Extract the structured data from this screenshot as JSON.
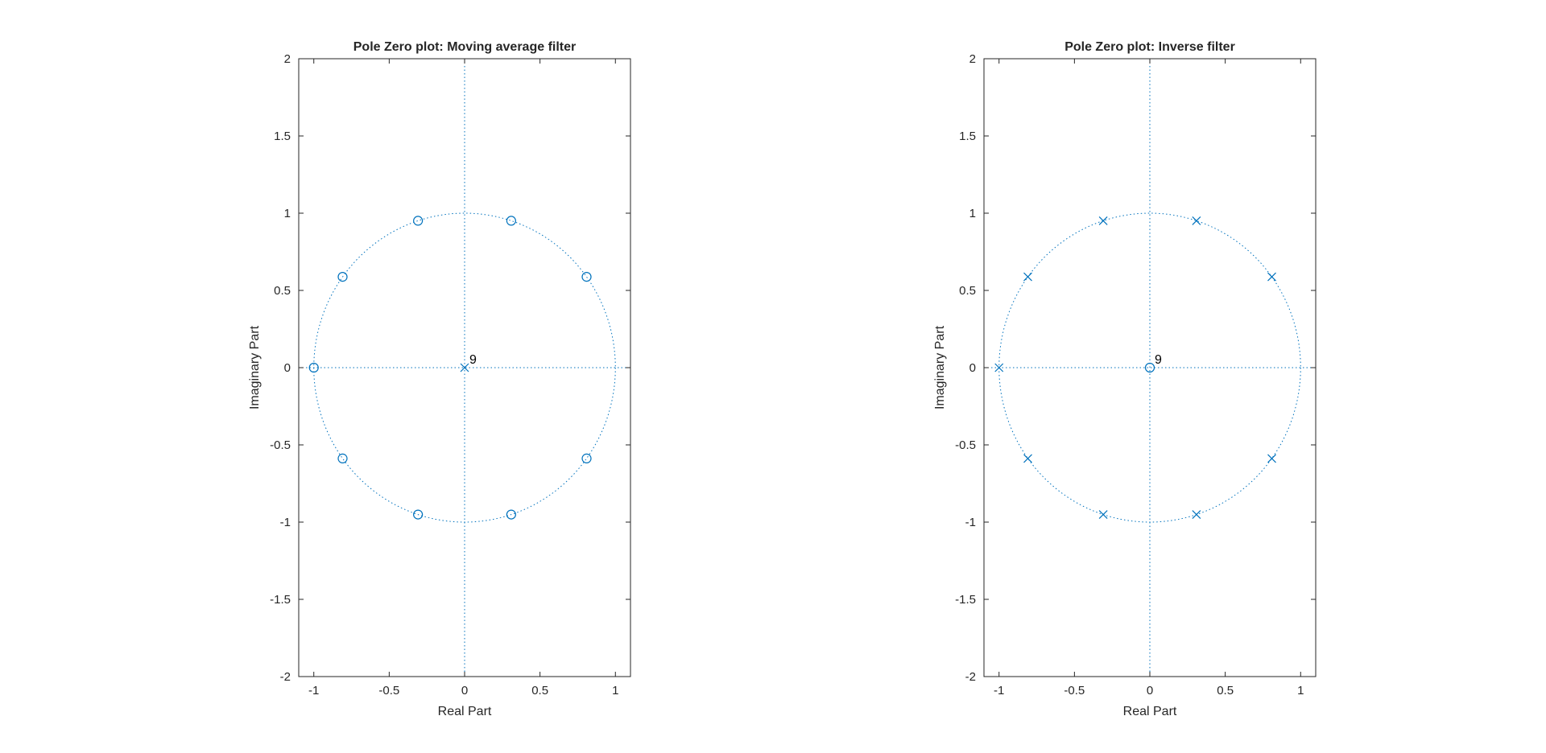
{
  "colors": {
    "marker": "#0072BD",
    "axes": "#262626",
    "background": "#FFFFFF"
  },
  "chart_data": [
    {
      "type": "scatter",
      "title": "Pole Zero plot: Moving average filter",
      "xlabel": "Real Part",
      "ylabel": "Imaginary Part",
      "xlim": [
        -1.1,
        1.1
      ],
      "ylim": [
        -2,
        2
      ],
      "xticks": [
        -1,
        -0.5,
        0,
        0.5,
        1
      ],
      "xtick_labels": [
        "-1",
        "-0.5",
        "0",
        "0.5",
        "1"
      ],
      "yticks": [
        -2,
        -1.5,
        -1,
        -0.5,
        0,
        0.5,
        1,
        1.5,
        2
      ],
      "ytick_labels": [
        "-2",
        "-1.5",
        "-1",
        "-0.5",
        "0",
        "0.5",
        "1",
        "1.5",
        "2"
      ],
      "unit_circle": true,
      "zeros": [
        [
          0.309,
          0.951
        ],
        [
          -0.309,
          0.951
        ],
        [
          0.809,
          0.588
        ],
        [
          -0.809,
          0.588
        ],
        [
          -1,
          0
        ],
        [
          0.809,
          -0.588
        ],
        [
          -0.809,
          -0.588
        ],
        [
          0.309,
          -0.951
        ],
        [
          -0.309,
          -0.951
        ]
      ],
      "poles": [
        [
          0,
          0
        ]
      ],
      "multiplicity": [
        {
          "x": 0,
          "y": 0,
          "label": "9"
        }
      ]
    },
    {
      "type": "scatter",
      "title": "Pole Zero plot: Inverse filter",
      "xlabel": "Real Part",
      "ylabel": "Imaginary Part",
      "xlim": [
        -1.1,
        1.1
      ],
      "ylim": [
        -2,
        2
      ],
      "xticks": [
        -1,
        -0.5,
        0,
        0.5,
        1
      ],
      "xtick_labels": [
        "-1",
        "-0.5",
        "0",
        "0.5",
        "1"
      ],
      "yticks": [
        -2,
        -1.5,
        -1,
        -0.5,
        0,
        0.5,
        1,
        1.5,
        2
      ],
      "ytick_labels": [
        "-2",
        "-1.5",
        "-1",
        "-0.5",
        "0",
        "0.5",
        "1",
        "1.5",
        "2"
      ],
      "unit_circle": true,
      "zeros": [
        [
          0,
          0
        ]
      ],
      "poles": [
        [
          0.309,
          0.951
        ],
        [
          -0.309,
          0.951
        ],
        [
          0.809,
          0.588
        ],
        [
          -0.809,
          0.588
        ],
        [
          -1,
          0
        ],
        [
          0.809,
          -0.588
        ],
        [
          -0.809,
          -0.588
        ],
        [
          0.309,
          -0.951
        ],
        [
          -0.309,
          -0.951
        ]
      ],
      "multiplicity": [
        {
          "x": 0,
          "y": 0,
          "label": "9"
        }
      ]
    }
  ]
}
